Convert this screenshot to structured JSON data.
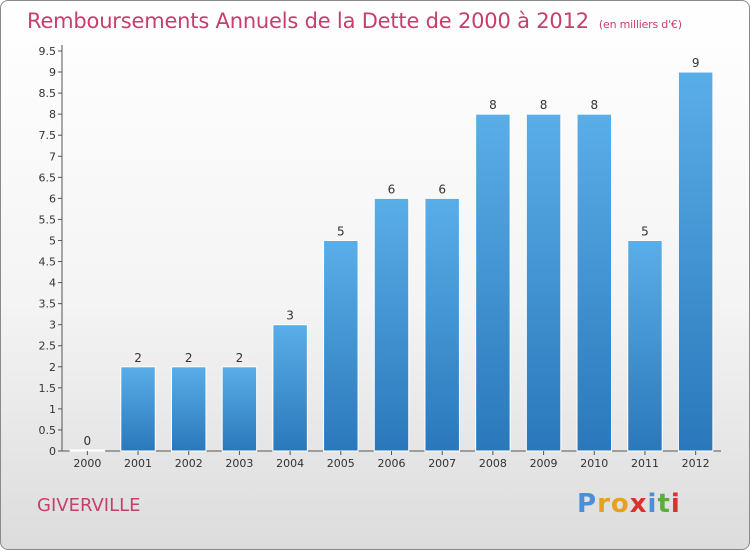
{
  "header": {
    "title": "Remboursements Annuels de la Dette de 2000 à 2012",
    "unit": "(en milliers d'€)"
  },
  "footer": {
    "commune": "GIVERVILLE",
    "logo_letters": [
      "P",
      "r",
      "o",
      "x",
      "i",
      "t",
      "i"
    ],
    "logo_colors": [
      "#4a90d9",
      "#e8a020",
      "#e8a020",
      "#d9342b",
      "#4a90d9",
      "#5aae3c",
      "#d9342b"
    ]
  },
  "colors": {
    "bar_light": "#5aaee8",
    "bar_dark": "#2a78bb",
    "title": "#c63f6b",
    "axis": "#555555"
  },
  "chart_data": {
    "type": "bar",
    "title": "Remboursements Annuels de la Dette de 2000 à 2012",
    "categories": [
      "2000",
      "2001",
      "2002",
      "2003",
      "2004",
      "2005",
      "2006",
      "2007",
      "2008",
      "2009",
      "2010",
      "2011",
      "2012"
    ],
    "values": [
      0,
      2,
      2,
      2,
      3,
      5,
      6,
      6,
      8,
      8,
      8,
      5,
      9
    ],
    "value_labels": [
      "0",
      "2",
      "2",
      "2",
      "3",
      "5",
      "6",
      "6",
      "8",
      "8",
      "8",
      "5",
      "9"
    ],
    "yticks": [
      "0",
      "0.5",
      "1",
      "1.5",
      "2",
      "2.5",
      "3",
      "3.5",
      "4",
      "4.5",
      "5",
      "5.5",
      "6",
      "6.5",
      "7",
      "7.5",
      "8",
      "8.5",
      "9",
      "9.5"
    ],
    "ylim": [
      0,
      9.5
    ],
    "grid": false,
    "xlabel": "",
    "ylabel": ""
  }
}
